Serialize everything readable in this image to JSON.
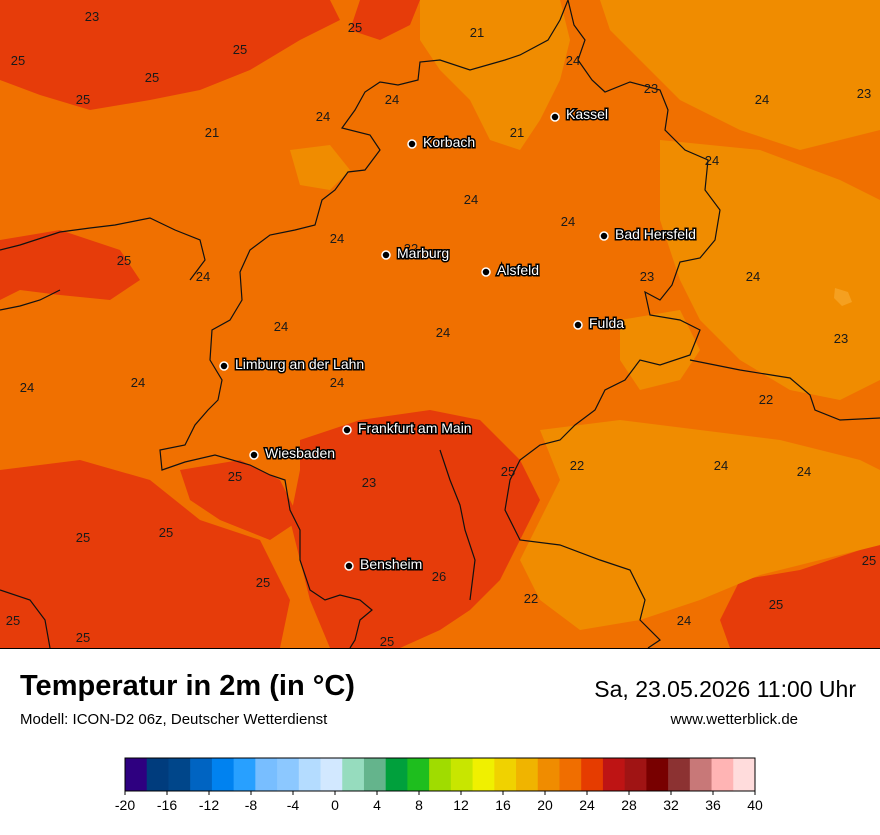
{
  "header": {
    "title": "Temperatur in 2m (in °C)",
    "subtitle": "Modell: ICON-D2 06z, Deutscher Wetterdienst",
    "datetime": "Sa, 23.05.2026 11:00 Uhr",
    "website": "www.wetterblick.de"
  },
  "cities": [
    {
      "name": "Kassel"
    },
    {
      "name": "Korbach"
    },
    {
      "name": "Bad Hersfeld"
    },
    {
      "name": "Marburg"
    },
    {
      "name": "Alsfeld"
    },
    {
      "name": "Fulda"
    },
    {
      "name": "Limburg an der Lahn"
    },
    {
      "name": "Frankfurt am Main"
    },
    {
      "name": "Wiesbaden"
    },
    {
      "name": "Bensheim"
    }
  ],
  "temperature_labels": [
    "23",
    "25",
    "21",
    "25",
    "24",
    "23",
    "25",
    "25",
    "25",
    "21",
    "24",
    "24",
    "21",
    "23",
    "24",
    "24",
    "24",
    "24",
    "24",
    "22",
    "25",
    "24",
    "23",
    "24",
    "24",
    "24",
    "23",
    "24",
    "24",
    "22",
    "24",
    "25",
    "22",
    "24",
    "24",
    "25",
    "23",
    "25",
    "25",
    "26",
    "22",
    "25",
    "24",
    "25",
    "25",
    "25"
  ],
  "legend": {
    "tick_labels": [
      "-20",
      "-16",
      "-12",
      "-8",
      "-4",
      "0",
      "4",
      "8",
      "12",
      "16",
      "20",
      "24",
      "28",
      "32",
      "36",
      "40"
    ],
    "colors": [
      "#2e0080",
      "#003c7d",
      "#00468a",
      "#0064c2",
      "#0082f0",
      "#28a0ff",
      "#78beff",
      "#8cc8ff",
      "#b4dcff",
      "#d2e8ff",
      "#96dcbe",
      "#64b48c",
      "#00a03c",
      "#1ebe1e",
      "#a0dc00",
      "#c8e600",
      "#f0f000",
      "#f0d200",
      "#f0b400",
      "#f08c00",
      "#f06e00",
      "#e63c00",
      "#be1414",
      "#a01414",
      "#780000",
      "#8c3232",
      "#c87878",
      "#ffb4b4",
      "#ffdcdc"
    ]
  }
}
